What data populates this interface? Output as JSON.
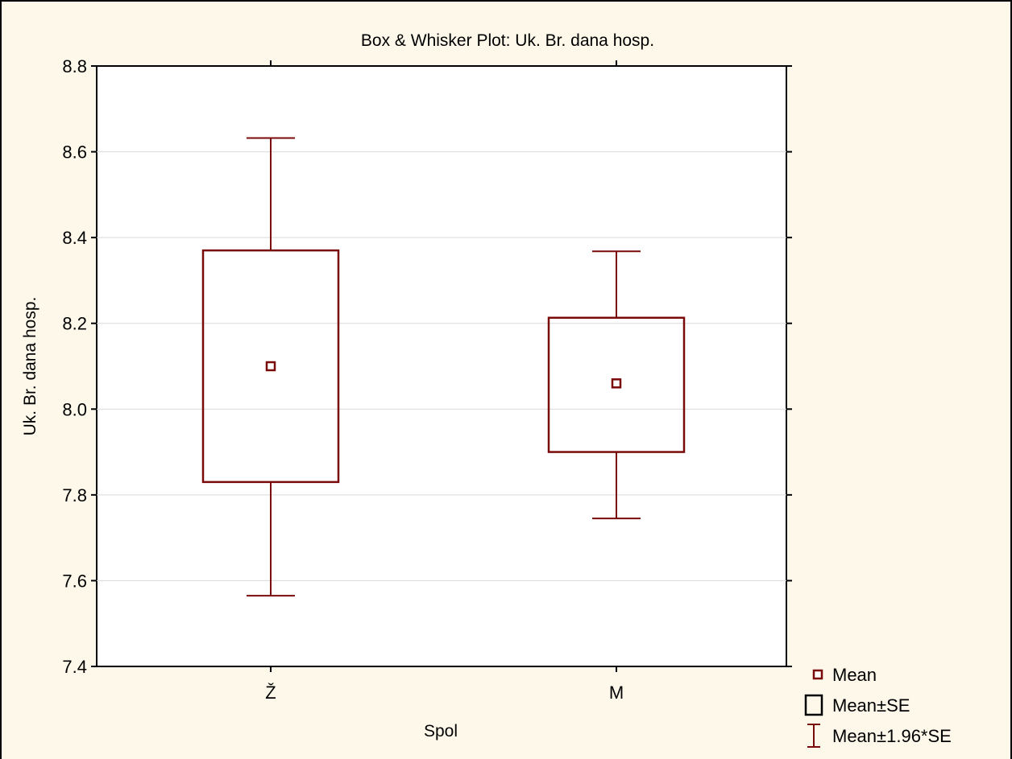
{
  "colors": {
    "background": "#fdf8ea",
    "plot_background": "#ffffff",
    "series": "#7a0a0a",
    "axis": "#000000",
    "grid": "#d9d9d9"
  },
  "chart_data": {
    "type": "box",
    "title": "Box & Whisker Plot: Uk. Br. dana hosp.",
    "xlabel": "Spol",
    "ylabel": "Uk. Br. dana hosp.",
    "ylim": [
      7.4,
      8.8
    ],
    "yticks": [
      7.4,
      7.6,
      7.8,
      8.0,
      8.2,
      8.4,
      8.6,
      8.8
    ],
    "ytick_labels": [
      "7.4",
      "7.6",
      "7.8",
      "8.0",
      "8.2",
      "8.4",
      "8.6",
      "8.8"
    ],
    "grid": true,
    "legend_position": "bottom-right",
    "categories": [
      "Ž",
      "M"
    ],
    "groups": [
      {
        "category": "Ž",
        "mean": 8.1,
        "se_low": 7.83,
        "se_high": 8.37,
        "ci_low": 7.565,
        "ci_high": 8.632
      },
      {
        "category": "M",
        "mean": 8.06,
        "se_low": 7.9,
        "se_high": 8.213,
        "ci_low": 7.745,
        "ci_high": 8.368
      }
    ],
    "legend": [
      {
        "symbol": "mean-marker",
        "label": "Mean"
      },
      {
        "symbol": "box",
        "label": "Mean±SE"
      },
      {
        "symbol": "whisker",
        "label": "Mean±1.96*SE"
      }
    ]
  }
}
